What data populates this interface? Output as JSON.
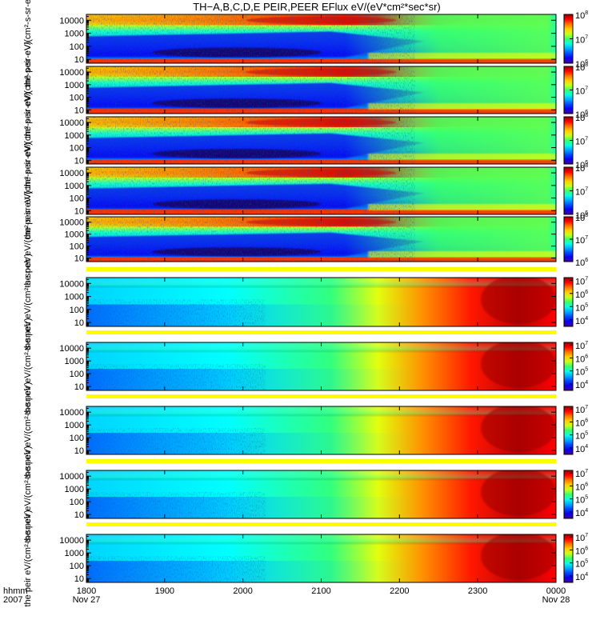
{
  "chart_data": {
    "type": "heatmap",
    "title": "TH−A,B,C,D,E PEIR,PEER EFlux eV/(eV*cm²*sec*sr)",
    "x_axis": {
      "ticks": [
        "1800",
        "1900",
        "2000",
        "2100",
        "2200",
        "2300",
        "0000"
      ],
      "sublabels": [
        {
          "at": "1800",
          "text": "Nov 27"
        },
        {
          "at": "0000",
          "text": "Nov 28"
        }
      ],
      "corner_label_top": "hhmm",
      "corner_label_bottom": "2007",
      "range_hours": [
        18,
        24
      ]
    },
    "panels": [
      {
        "species": "ion",
        "ylabel": "the peir eV/(cm²-s-sr-eV)",
        "yticks": [
          "10000",
          "1000",
          "100",
          "10"
        ],
        "cbar_ticks": [
          {
            "v": 6,
            "t": "10"
          },
          {
            "v": 7,
            "t": "10"
          },
          {
            "v": 8,
            "t": "10"
          }
        ],
        "cbar_range": [
          6,
          8
        ]
      },
      {
        "species": "ion",
        "ylabel": "the peir eV/(cm²-s-sr-eV)",
        "yticks": [
          "10000",
          "1000",
          "100",
          "10"
        ],
        "cbar_ticks": [
          {
            "v": 6,
            "t": "10"
          },
          {
            "v": 7,
            "t": "10"
          },
          {
            "v": 8,
            "t": "10"
          }
        ],
        "cbar_range": [
          6,
          8
        ]
      },
      {
        "species": "ion",
        "ylabel": "the peir eV/(cm²-s-sr-eV)",
        "yticks": [
          "10000",
          "1000",
          "100",
          "10"
        ],
        "cbar_ticks": [
          {
            "v": 6,
            "t": "10"
          },
          {
            "v": 7,
            "t": "10"
          },
          {
            "v": 8,
            "t": "10"
          }
        ],
        "cbar_range": [
          6,
          8
        ]
      },
      {
        "species": "ion",
        "ylabel": "the peir eV/(cm²-s-sr-eV)",
        "yticks": [
          "10000",
          "1000",
          "100",
          "10"
        ],
        "cbar_ticks": [
          {
            "v": 6,
            "t": "10"
          },
          {
            "v": 7,
            "t": "10"
          },
          {
            "v": 8,
            "t": "10"
          }
        ],
        "cbar_range": [
          6,
          8
        ]
      },
      {
        "species": "ion",
        "ylabel": "the peir eV/(cm²-s-sr-eV)",
        "yticks": [
          "10000",
          "1000",
          "100",
          "10"
        ],
        "cbar_ticks": [
          {
            "v": 6,
            "t": "10"
          },
          {
            "v": 7,
            "t": "10"
          },
          {
            "v": 8,
            "t": "10"
          }
        ],
        "cbar_range": [
          6,
          8
        ]
      },
      {
        "species": "electron",
        "ylabel": "the peir eV/(cm²-s-sr-eV)",
        "yticks": [
          "10000",
          "1000",
          "100",
          "10"
        ],
        "cbar_ticks": [
          {
            "v": 4,
            "t": "10"
          },
          {
            "v": 5,
            "t": "10"
          },
          {
            "v": 6,
            "t": "10"
          },
          {
            "v": 7,
            "t": "10"
          }
        ],
        "cbar_range": [
          3.5,
          7.2
        ]
      },
      {
        "species": "electron",
        "ylabel": "the peir eV/(cm²-s-sr-eV)",
        "yticks": [
          "10000",
          "1000",
          "100",
          "10"
        ],
        "cbar_ticks": [
          {
            "v": 4,
            "t": "10"
          },
          {
            "v": 5,
            "t": "10"
          },
          {
            "v": 6,
            "t": "10"
          },
          {
            "v": 7,
            "t": "10"
          }
        ],
        "cbar_range": [
          3.5,
          7.2
        ]
      },
      {
        "species": "electron",
        "ylabel": "the peir eV/(cm²-s-sr-eV)",
        "yticks": [
          "10000",
          "1000",
          "100",
          "10"
        ],
        "cbar_ticks": [
          {
            "v": 4,
            "t": "10"
          },
          {
            "v": 5,
            "t": "10"
          },
          {
            "v": 6,
            "t": "10"
          },
          {
            "v": 7,
            "t": "10"
          }
        ],
        "cbar_range": [
          3.5,
          7.2
        ]
      },
      {
        "species": "electron",
        "ylabel": "the peir eV/(cm²-s-sr-eV)",
        "yticks": [
          "10000",
          "1000",
          "100",
          "10"
        ],
        "cbar_ticks": [
          {
            "v": 4,
            "t": "10"
          },
          {
            "v": 5,
            "t": "10"
          },
          {
            "v": 6,
            "t": "10"
          },
          {
            "v": 7,
            "t": "10"
          }
        ],
        "cbar_range": [
          3.5,
          7.2
        ]
      },
      {
        "species": "electron",
        "ylabel": "the peir eV/(cm²-s-sr-eV)",
        "yticks": [
          "10000",
          "1000",
          "100",
          "10"
        ],
        "cbar_ticks": [
          {
            "v": 4,
            "t": "10"
          },
          {
            "v": 5,
            "t": "10"
          },
          {
            "v": 6,
            "t": "10"
          },
          {
            "v": 7,
            "t": "10"
          }
        ],
        "cbar_range": [
          3.5,
          7.2
        ]
      }
    ]
  }
}
